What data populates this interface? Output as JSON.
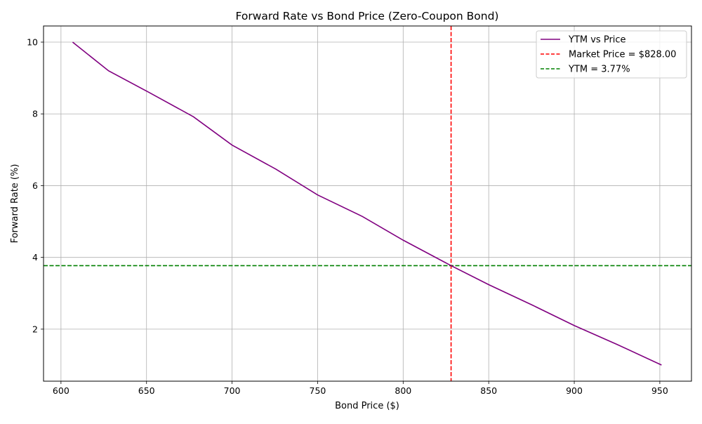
{
  "chart_data": {
    "type": "line",
    "title": "Forward Rate vs Bond Price (Zero-Coupon Bond)",
    "xlabel": "Bond Price ($)",
    "ylabel": "Forward Rate (%)",
    "xlim": [
      589.8,
      968.5
    ],
    "ylim": [
      0.55,
      10.45
    ],
    "x_ticks": [
      600,
      650,
      700,
      750,
      800,
      850,
      900,
      950
    ],
    "y_ticks": [
      2,
      4,
      6,
      8,
      10
    ],
    "grid": true,
    "legend_position": "top-right",
    "series": [
      {
        "name": "YTM vs Price",
        "color": "#800080",
        "style": "solid",
        "points": [
          [
            606.8,
            10.0
          ],
          [
            627.8,
            9.2
          ],
          [
            651.4,
            8.6
          ],
          [
            677.4,
            7.92
          ],
          [
            700.0,
            7.13
          ],
          [
            725.6,
            6.46
          ],
          [
            750.0,
            5.74
          ],
          [
            776.2,
            5.14
          ],
          [
            800.0,
            4.48
          ],
          [
            828.0,
            3.77
          ],
          [
            850.0,
            3.24
          ],
          [
            875.5,
            2.67
          ],
          [
            900.0,
            2.1
          ],
          [
            925.2,
            1.57
          ],
          [
            951.0,
            1.0
          ]
        ]
      }
    ],
    "reference_lines": [
      {
        "name": "Market Price = $828.00",
        "orientation": "vertical",
        "value": 828.0,
        "color": "#ff0000",
        "style": "dashed"
      },
      {
        "name": "YTM = 3.77%",
        "orientation": "horizontal",
        "value": 3.77,
        "color": "#008000",
        "style": "dashed"
      }
    ]
  }
}
